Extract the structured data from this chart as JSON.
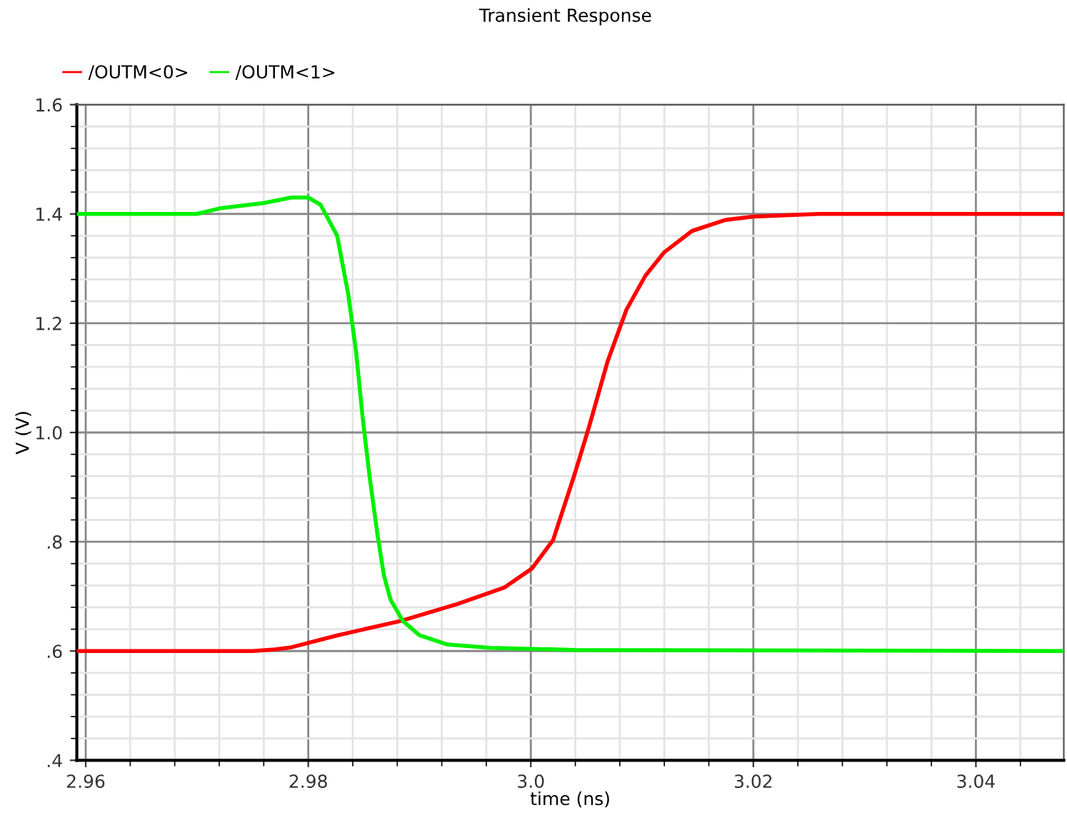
{
  "chart_data": {
    "type": "line",
    "title": "Transient Response",
    "xlabel": "time (ns)",
    "ylabel": "V (V)",
    "xlim": [
      2.9592,
      3.0479
    ],
    "xticks": [
      2.96,
      2.98,
      {
        "value": 3.0,
        "label": "3.0"
      },
      3.02,
      3.04
    ],
    "ylim": [
      0.4,
      1.6
    ],
    "yticks": [
      {
        "value": 0.4,
        "label": ".4"
      },
      {
        "value": 0.6,
        "label": ".6"
      },
      {
        "value": 0.8,
        "label": ".8"
      },
      {
        "value": 1.0,
        "label": "1.0"
      },
      1.2,
      1.4,
      1.6
    ],
    "grid": true,
    "legend": "top left",
    "line_style": "solid",
    "series": [
      {
        "name": "/OUTM<0>",
        "color": "#ff0000",
        "x": [
          2.9592,
          2.975,
          2.977,
          2.9785,
          2.9827,
          2.9883,
          2.9934,
          2.9976,
          3.0001,
          3.002,
          3.0039,
          3.0052,
          3.0069,
          3.0086,
          3.0103,
          3.012,
          3.0145,
          3.0175,
          3.02,
          3.0259,
          3.0479
        ],
        "values": [
          0.6,
          0.6,
          0.603,
          0.607,
          0.629,
          0.655,
          0.686,
          0.716,
          0.751,
          0.803,
          0.921,
          1.008,
          1.13,
          1.225,
          1.287,
          1.33,
          1.369,
          1.389,
          1.395,
          1.4,
          1.4
        ]
      },
      {
        "name": "/OUTM<1>",
        "color": "#00f000",
        "x": [
          2.9592,
          2.97,
          2.972,
          2.976,
          2.9785,
          2.98,
          2.9811,
          2.9826,
          2.9836,
          2.9843,
          2.9849,
          2.9855,
          2.9862,
          2.9868,
          2.9874,
          2.9885,
          2.99,
          2.9925,
          2.9963,
          3.004,
          3.0479
        ],
        "values": [
          1.4,
          1.4,
          1.41,
          1.42,
          1.43,
          1.43,
          1.417,
          1.36,
          1.252,
          1.147,
          1.025,
          0.921,
          0.816,
          0.738,
          0.694,
          0.655,
          0.629,
          0.612,
          0.606,
          0.602,
          0.6
        ]
      }
    ]
  }
}
